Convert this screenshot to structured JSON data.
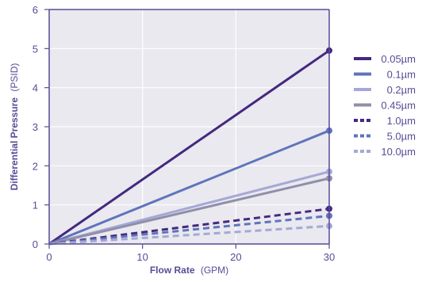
{
  "chart_data": {
    "type": "line",
    "title": "",
    "xlabel_bold": "Flow Rate",
    "xlabel_unit": "(GPM)",
    "ylabel_bold": "Differential Pressure",
    "ylabel_unit": "(PSID)",
    "xlim": [
      0,
      30
    ],
    "ylim": [
      0,
      6
    ],
    "x_ticks": [
      0,
      10,
      20,
      30
    ],
    "y_ticks": [
      0,
      1,
      2,
      3,
      4,
      5,
      6
    ],
    "grid": true,
    "legend_position": "right",
    "colors": {
      "axis": "#5a4a96",
      "grid": "#ffffff",
      "plot_background": "#e9e9ef",
      "text": "#5a4a96"
    },
    "series": [
      {
        "name": "0.05µm",
        "x": [
          0,
          30
        ],
        "y": [
          0,
          4.95
        ],
        "color": "#45287f",
        "dash": "solid"
      },
      {
        "name": "0.1µm",
        "x": [
          0,
          30
        ],
        "y": [
          0,
          2.9
        ],
        "color": "#5f74bc",
        "dash": "solid"
      },
      {
        "name": "0.2µm",
        "x": [
          0,
          30
        ],
        "y": [
          0,
          1.85
        ],
        "color": "#a5a8d6",
        "dash": "solid"
      },
      {
        "name": "0.45µm",
        "x": [
          0,
          30
        ],
        "y": [
          0,
          1.68
        ],
        "color": "#8f8fa8",
        "dash": "solid"
      },
      {
        "name": "1.0µm",
        "x": [
          0,
          30
        ],
        "y": [
          0,
          0.9
        ],
        "color": "#45287f",
        "dash": "dashed"
      },
      {
        "name": "5.0µm",
        "x": [
          0,
          30
        ],
        "y": [
          0,
          0.72
        ],
        "color": "#5f74bc",
        "dash": "dashed"
      },
      {
        "name": "10.0µm",
        "x": [
          0,
          30
        ],
        "y": [
          0,
          0.46
        ],
        "color": "#a5a8d6",
        "dash": "dashed"
      }
    ]
  }
}
